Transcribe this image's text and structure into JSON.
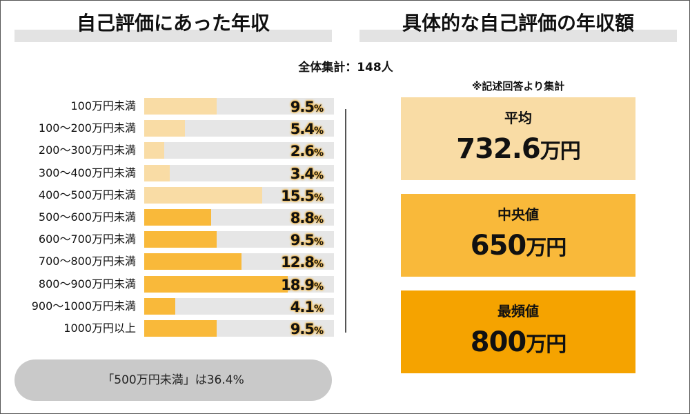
{
  "left_title": "自己評価にあった年収",
  "right_title": "具体的な自己評価の年収額",
  "total_label": "全体集計：148人",
  "note": "※記述回答より集計",
  "summary": "「500万円未満」は36.4%",
  "colors": {
    "light_bar": "#f9dca5",
    "dark_bar": "#f9b93a",
    "track": "#e6e6e6",
    "box_mean": "#f9dca5",
    "box_median": "#f9b93a",
    "box_mode": "#f5a300"
  },
  "chart_data": {
    "type": "bar",
    "orientation": "horizontal",
    "categories": [
      "100万円未満",
      "100〜200万円未満",
      "200〜300万円未満",
      "300〜400万円未満",
      "400〜500万円未満",
      "500〜600万円未満",
      "600〜700万円未満",
      "700〜800万円未満",
      "800〜900万円未満",
      "900〜1000万円未満",
      "1000万円以上"
    ],
    "values": [
      9.5,
      5.4,
      2.6,
      3.4,
      15.5,
      8.8,
      9.5,
      12.8,
      18.9,
      4.1,
      9.5
    ],
    "value_labels": [
      "9.5",
      "5.4",
      "2.6",
      "3.4",
      "15.5",
      "8.8",
      "9.5",
      "12.8",
      "18.9",
      "4.1",
      "9.5"
    ],
    "unit": "%",
    "xlim": [
      0,
      25
    ],
    "color_groups": [
      "light",
      "light",
      "light",
      "light",
      "light",
      "dark",
      "dark",
      "dark",
      "dark",
      "dark",
      "dark"
    ]
  },
  "stats": [
    {
      "label": "平均",
      "value": "732.6",
      "unit": "万円",
      "color_key": "box_mean"
    },
    {
      "label": "中央値",
      "value": "650",
      "unit": "万円",
      "color_key": "box_median"
    },
    {
      "label": "最頻値",
      "value": "800",
      "unit": "万円",
      "color_key": "box_mode"
    }
  ]
}
